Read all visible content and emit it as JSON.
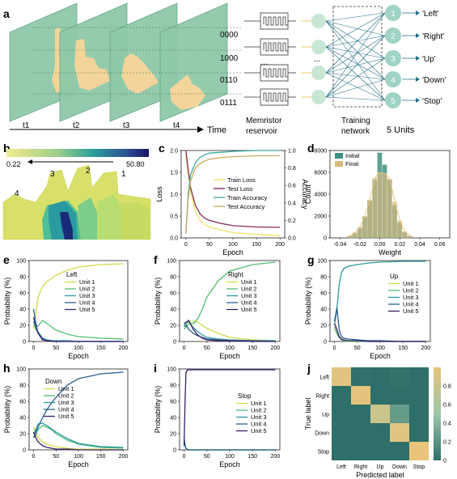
{
  "panel_labels": [
    "a",
    "b",
    "c",
    "d",
    "e",
    "f",
    "g",
    "h",
    "i",
    "j"
  ],
  "panel_a": {
    "time_labels": [
      "t1",
      "t2",
      "t3",
      "t4"
    ],
    "time_axis_label": "Time",
    "codes": [
      "0000",
      "1000",
      "0110",
      "0111"
    ],
    "ellipsis": "...",
    "memristor_label_line1": "Memristor",
    "memristor_label_line2": "reservoir",
    "training_label_line1": "Training",
    "training_label_line2": "network",
    "units_label": "5 Units",
    "outputs": [
      {
        "num": "1",
        "label": "'Left'"
      },
      {
        "num": "2",
        "label": "'Right'"
      },
      {
        "num": "3",
        "label": "'Up'"
      },
      {
        "num": "4",
        "label": "'Down'"
      },
      {
        "num": "5",
        "label": "'Stop'"
      }
    ],
    "colors": {
      "frame": "#8fc9a9",
      "hand": "#f3d49b",
      "node": "#c8e6d4",
      "output": "#9fd3c5",
      "line": "#1f6f86"
    }
  },
  "panel_b": {
    "colorbar_min": "0.22",
    "colorbar_max": "50.80",
    "finger_labels": [
      "4",
      "3",
      "2",
      "1"
    ]
  },
  "chart_data": [
    {
      "panel": "c",
      "type": "line",
      "xlabel": "Epoch",
      "ylabel_left": "Loss",
      "ylabel_right": "Accuracy",
      "ylim_left": [
        0,
        2.0
      ],
      "ylim_right": [
        0,
        1.0
      ],
      "x": [
        0,
        5,
        10,
        20,
        30,
        40,
        50,
        75,
        100,
        150,
        200
      ],
      "x_ticks": [
        "0",
        "50",
        "100",
        "150",
        "200"
      ],
      "y_ticks_left": [
        "0.0",
        "0.5",
        "1.0",
        "1.5",
        "2.0"
      ],
      "y_ticks_right": [
        "0.0",
        "0.2",
        "0.4",
        "0.6",
        "0.8",
        "1.0"
      ],
      "series": [
        {
          "name": "Train Loss",
          "axis": "left",
          "color": "#f2e264",
          "values": [
            1.9,
            1.45,
            1.05,
            0.6,
            0.4,
            0.3,
            0.25,
            0.18,
            0.12,
            0.08,
            0.05
          ]
        },
        {
          "name": "Test Loss",
          "axis": "left",
          "color": "#8a2a5a",
          "values": [
            2.0,
            1.55,
            1.15,
            0.75,
            0.55,
            0.45,
            0.4,
            0.33,
            0.28,
            0.25,
            0.24
          ]
        },
        {
          "name": "Train Accuracy",
          "axis": "right",
          "color": "#3fa7a7",
          "values": [
            0.05,
            0.5,
            0.72,
            0.86,
            0.92,
            0.95,
            0.97,
            0.98,
            0.99,
            1.0,
            1.0
          ]
        },
        {
          "name": "Test Accuracy",
          "axis": "right",
          "color": "#c9ac62",
          "values": [
            0.05,
            0.45,
            0.65,
            0.8,
            0.85,
            0.88,
            0.9,
            0.92,
            0.93,
            0.94,
            0.94
          ]
        }
      ],
      "legend": "right"
    },
    {
      "panel": "d",
      "type": "bar",
      "xlabel": "Weight",
      "ylabel": "Count",
      "xlim": [
        -0.05,
        0.07
      ],
      "ylim": [
        0,
        8000
      ],
      "x_ticks": [
        "-0.04",
        "-0.02",
        "0.00",
        "0.02",
        "0.04",
        "0.06"
      ],
      "y_ticks": [
        "0",
        "2000",
        "4000",
        "6000",
        "8000"
      ],
      "bin_centers": [
        -0.03,
        -0.025,
        -0.02,
        -0.015,
        -0.01,
        -0.005,
        0.0,
        0.005,
        0.01,
        0.015,
        0.02,
        0.025,
        0.03
      ],
      "series": [
        {
          "name": "Initial",
          "color": "#3f8f80",
          "values": [
            150,
            400,
            900,
            1900,
            3400,
            5300,
            7800,
            6700,
            5300,
            3000,
            1400,
            500,
            150
          ]
        },
        {
          "name": "Final",
          "color": "#d9b87a",
          "values": [
            200,
            500,
            1000,
            2000,
            3500,
            5500,
            6000,
            5900,
            5400,
            3300,
            1600,
            600,
            200
          ]
        }
      ],
      "legend": "top-left"
    },
    {
      "panel": "e",
      "type": "line",
      "title": "Left",
      "xlabel": "Epoch",
      "ylabel": "Probability (%)",
      "ylim": [
        0,
        100
      ],
      "x_ticks": [
        "0",
        "50",
        "100",
        "150",
        "200"
      ],
      "y_ticks": [
        "0",
        "20",
        "40",
        "60",
        "80",
        "100"
      ],
      "x": [
        0,
        5,
        10,
        20,
        30,
        40,
        50,
        75,
        100,
        150,
        200
      ],
      "series": [
        {
          "name": "Unit 1",
          "color": "#d2d94a",
          "values": [
            15,
            35,
            55,
            68,
            74,
            78,
            82,
            88,
            92,
            95,
            96
          ]
        },
        {
          "name": "Unit 2",
          "color": "#4fbf73",
          "values": [
            20,
            20,
            19,
            26,
            22,
            18,
            14,
            9,
            6,
            4,
            3
          ]
        },
        {
          "name": "Unit 3",
          "color": "#2a9aa0",
          "values": [
            25,
            15,
            12,
            4,
            2,
            1,
            1,
            1,
            0,
            0,
            0
          ]
        },
        {
          "name": "Unit 4",
          "color": "#2d5f8e",
          "values": [
            40,
            22,
            10,
            3,
            1,
            1,
            0,
            0,
            0,
            0,
            0
          ]
        },
        {
          "name": "Unit 5",
          "color": "#3a1f6b",
          "values": [
            30,
            20,
            10,
            2,
            1,
            0,
            0,
            0,
            0,
            0,
            0
          ]
        }
      ]
    },
    {
      "panel": "f",
      "type": "line",
      "title": "Right",
      "xlabel": "Epoch",
      "ylabel": "Probability (%)",
      "ylim": [
        0,
        100
      ],
      "x_ticks": [
        "0",
        "50",
        "100",
        "150",
        "200"
      ],
      "y_ticks": [
        "0",
        "20",
        "40",
        "60",
        "80",
        "100"
      ],
      "x": [
        0,
        5,
        10,
        20,
        30,
        40,
        50,
        75,
        100,
        150,
        200
      ],
      "series": [
        {
          "name": "Unit 1",
          "color": "#d2d94a",
          "values": [
            18,
            22,
            25,
            25,
            24,
            20,
            16,
            10,
            5,
            2,
            1
          ]
        },
        {
          "name": "Unit 2",
          "color": "#4fbf73",
          "values": [
            15,
            18,
            22,
            22,
            28,
            40,
            55,
            75,
            87,
            95,
            98
          ]
        },
        {
          "name": "Unit 3",
          "color": "#2a9aa0",
          "values": [
            20,
            23,
            25,
            17,
            12,
            8,
            5,
            3,
            2,
            1,
            1
          ]
        },
        {
          "name": "Unit 4",
          "color": "#2d5f8e",
          "values": [
            18,
            20,
            15,
            10,
            7,
            5,
            3,
            2,
            1,
            1,
            0
          ]
        },
        {
          "name": "Unit 5",
          "color": "#3a1f6b",
          "values": [
            22,
            24,
            26,
            15,
            8,
            4,
            2,
            1,
            1,
            0,
            0
          ]
        }
      ]
    },
    {
      "panel": "g",
      "type": "line",
      "title": "Up",
      "xlabel": "Epoch",
      "ylabel": "Probability (%)",
      "ylim": [
        0,
        100
      ],
      "x_ticks": [
        "0",
        "50",
        "100",
        "150",
        "200"
      ],
      "y_ticks": [
        "0",
        "20",
        "40",
        "60",
        "80",
        "100"
      ],
      "x": [
        0,
        5,
        10,
        15,
        20,
        30,
        50,
        75,
        100,
        150,
        200
      ],
      "series": [
        {
          "name": "Unit 1",
          "color": "#d2d94a",
          "values": [
            15,
            10,
            5,
            2,
            1,
            0,
            0,
            0,
            0,
            0,
            0
          ]
        },
        {
          "name": "Unit 2",
          "color": "#4fbf73",
          "values": [
            18,
            10,
            5,
            2,
            1,
            0,
            0,
            0,
            0,
            0,
            0
          ]
        },
        {
          "name": "Unit 3",
          "color": "#2a9aa0",
          "values": [
            20,
            40,
            70,
            85,
            90,
            93,
            95,
            97,
            98,
            99,
            99
          ]
        },
        {
          "name": "Unit 4",
          "color": "#2d5f8e",
          "values": [
            25,
            42,
            15,
            6,
            4,
            3,
            2,
            1,
            1,
            0,
            0
          ]
        },
        {
          "name": "Unit 5",
          "color": "#3a1f6b",
          "values": [
            22,
            15,
            6,
            3,
            2,
            1,
            1,
            0,
            0,
            0,
            0
          ]
        }
      ]
    },
    {
      "panel": "h",
      "type": "line",
      "title": "Down",
      "xlabel": "Epoch",
      "ylabel": "Probability (%)",
      "ylim": [
        0,
        100
      ],
      "x_ticks": [
        "0",
        "50",
        "100",
        "150",
        "200"
      ],
      "y_ticks": [
        "0",
        "20",
        "40",
        "60",
        "80",
        "100"
      ],
      "x": [
        0,
        5,
        10,
        20,
        30,
        40,
        50,
        75,
        100,
        150,
        200
      ],
      "series": [
        {
          "name": "Unit 1",
          "color": "#d2d94a",
          "values": [
            28,
            20,
            15,
            10,
            7,
            5,
            4,
            2,
            1,
            1,
            0
          ]
        },
        {
          "name": "Unit 2",
          "color": "#4fbf73",
          "values": [
            15,
            18,
            25,
            30,
            28,
            25,
            20,
            12,
            7,
            3,
            2
          ]
        },
        {
          "name": "Unit 3",
          "color": "#2a9aa0",
          "values": [
            20,
            25,
            32,
            33,
            30,
            26,
            22,
            14,
            8,
            4,
            3
          ]
        },
        {
          "name": "Unit 4",
          "color": "#2d5f8e",
          "values": [
            15,
            22,
            28,
            40,
            50,
            58,
            65,
            80,
            88,
            94,
            96
          ]
        },
        {
          "name": "Unit 5",
          "color": "#3a1f6b",
          "values": [
            22,
            15,
            10,
            5,
            3,
            2,
            1,
            1,
            0,
            0,
            0
          ]
        }
      ]
    },
    {
      "panel": "i",
      "type": "line",
      "title": "Stop",
      "xlabel": "Epoch",
      "ylabel": "Probability (%)",
      "ylim": [
        0,
        100
      ],
      "x_ticks": [
        "0",
        "50",
        "100",
        "150",
        "200"
      ],
      "y_ticks": [
        "0",
        "20",
        "40",
        "60",
        "80",
        "100"
      ],
      "x": [
        0,
        2,
        4,
        6,
        8,
        10,
        50,
        100,
        150,
        200
      ],
      "series": [
        {
          "name": "Unit 1",
          "color": "#d2d94a",
          "values": [
            10,
            5,
            2,
            1,
            0,
            0,
            0,
            0,
            0,
            0
          ]
        },
        {
          "name": "Unit 2",
          "color": "#4fbf73",
          "values": [
            8,
            4,
            2,
            1,
            0,
            0,
            0,
            0,
            0,
            0
          ]
        },
        {
          "name": "Unit 3",
          "color": "#2a9aa0",
          "values": [
            12,
            5,
            2,
            1,
            0,
            0,
            0,
            0,
            0,
            0
          ]
        },
        {
          "name": "Unit 4",
          "color": "#2d5f8e",
          "values": [
            15,
            6,
            2,
            1,
            0,
            0,
            0,
            0,
            0,
            0
          ]
        },
        {
          "name": "Unit 5",
          "color": "#3a1f6b",
          "values": [
            5,
            60,
            95,
            98,
            99,
            99,
            99,
            99,
            99,
            99
          ]
        }
      ]
    },
    {
      "panel": "j",
      "type": "heatmap",
      "xlabel": "Predicted label",
      "ylabel": "True label",
      "labels": [
        "Left",
        "Right",
        "Up",
        "Down",
        "Stop"
      ],
      "matrix": [
        [
          0.95,
          0.01,
          0.0,
          0.02,
          0.0
        ],
        [
          0.0,
          0.97,
          0.0,
          0.0,
          0.0
        ],
        [
          0.0,
          0.0,
          0.8,
          0.25,
          0.0
        ],
        [
          0.0,
          0.0,
          0.0,
          0.95,
          0.0
        ],
        [
          0.0,
          0.0,
          0.0,
          0.0,
          1.0
        ]
      ],
      "colorbar_ticks": [
        "0",
        "0.2",
        "0.4",
        "0.6",
        "0.8"
      ],
      "colorbar_range": [
        0,
        1.0
      ]
    }
  ]
}
